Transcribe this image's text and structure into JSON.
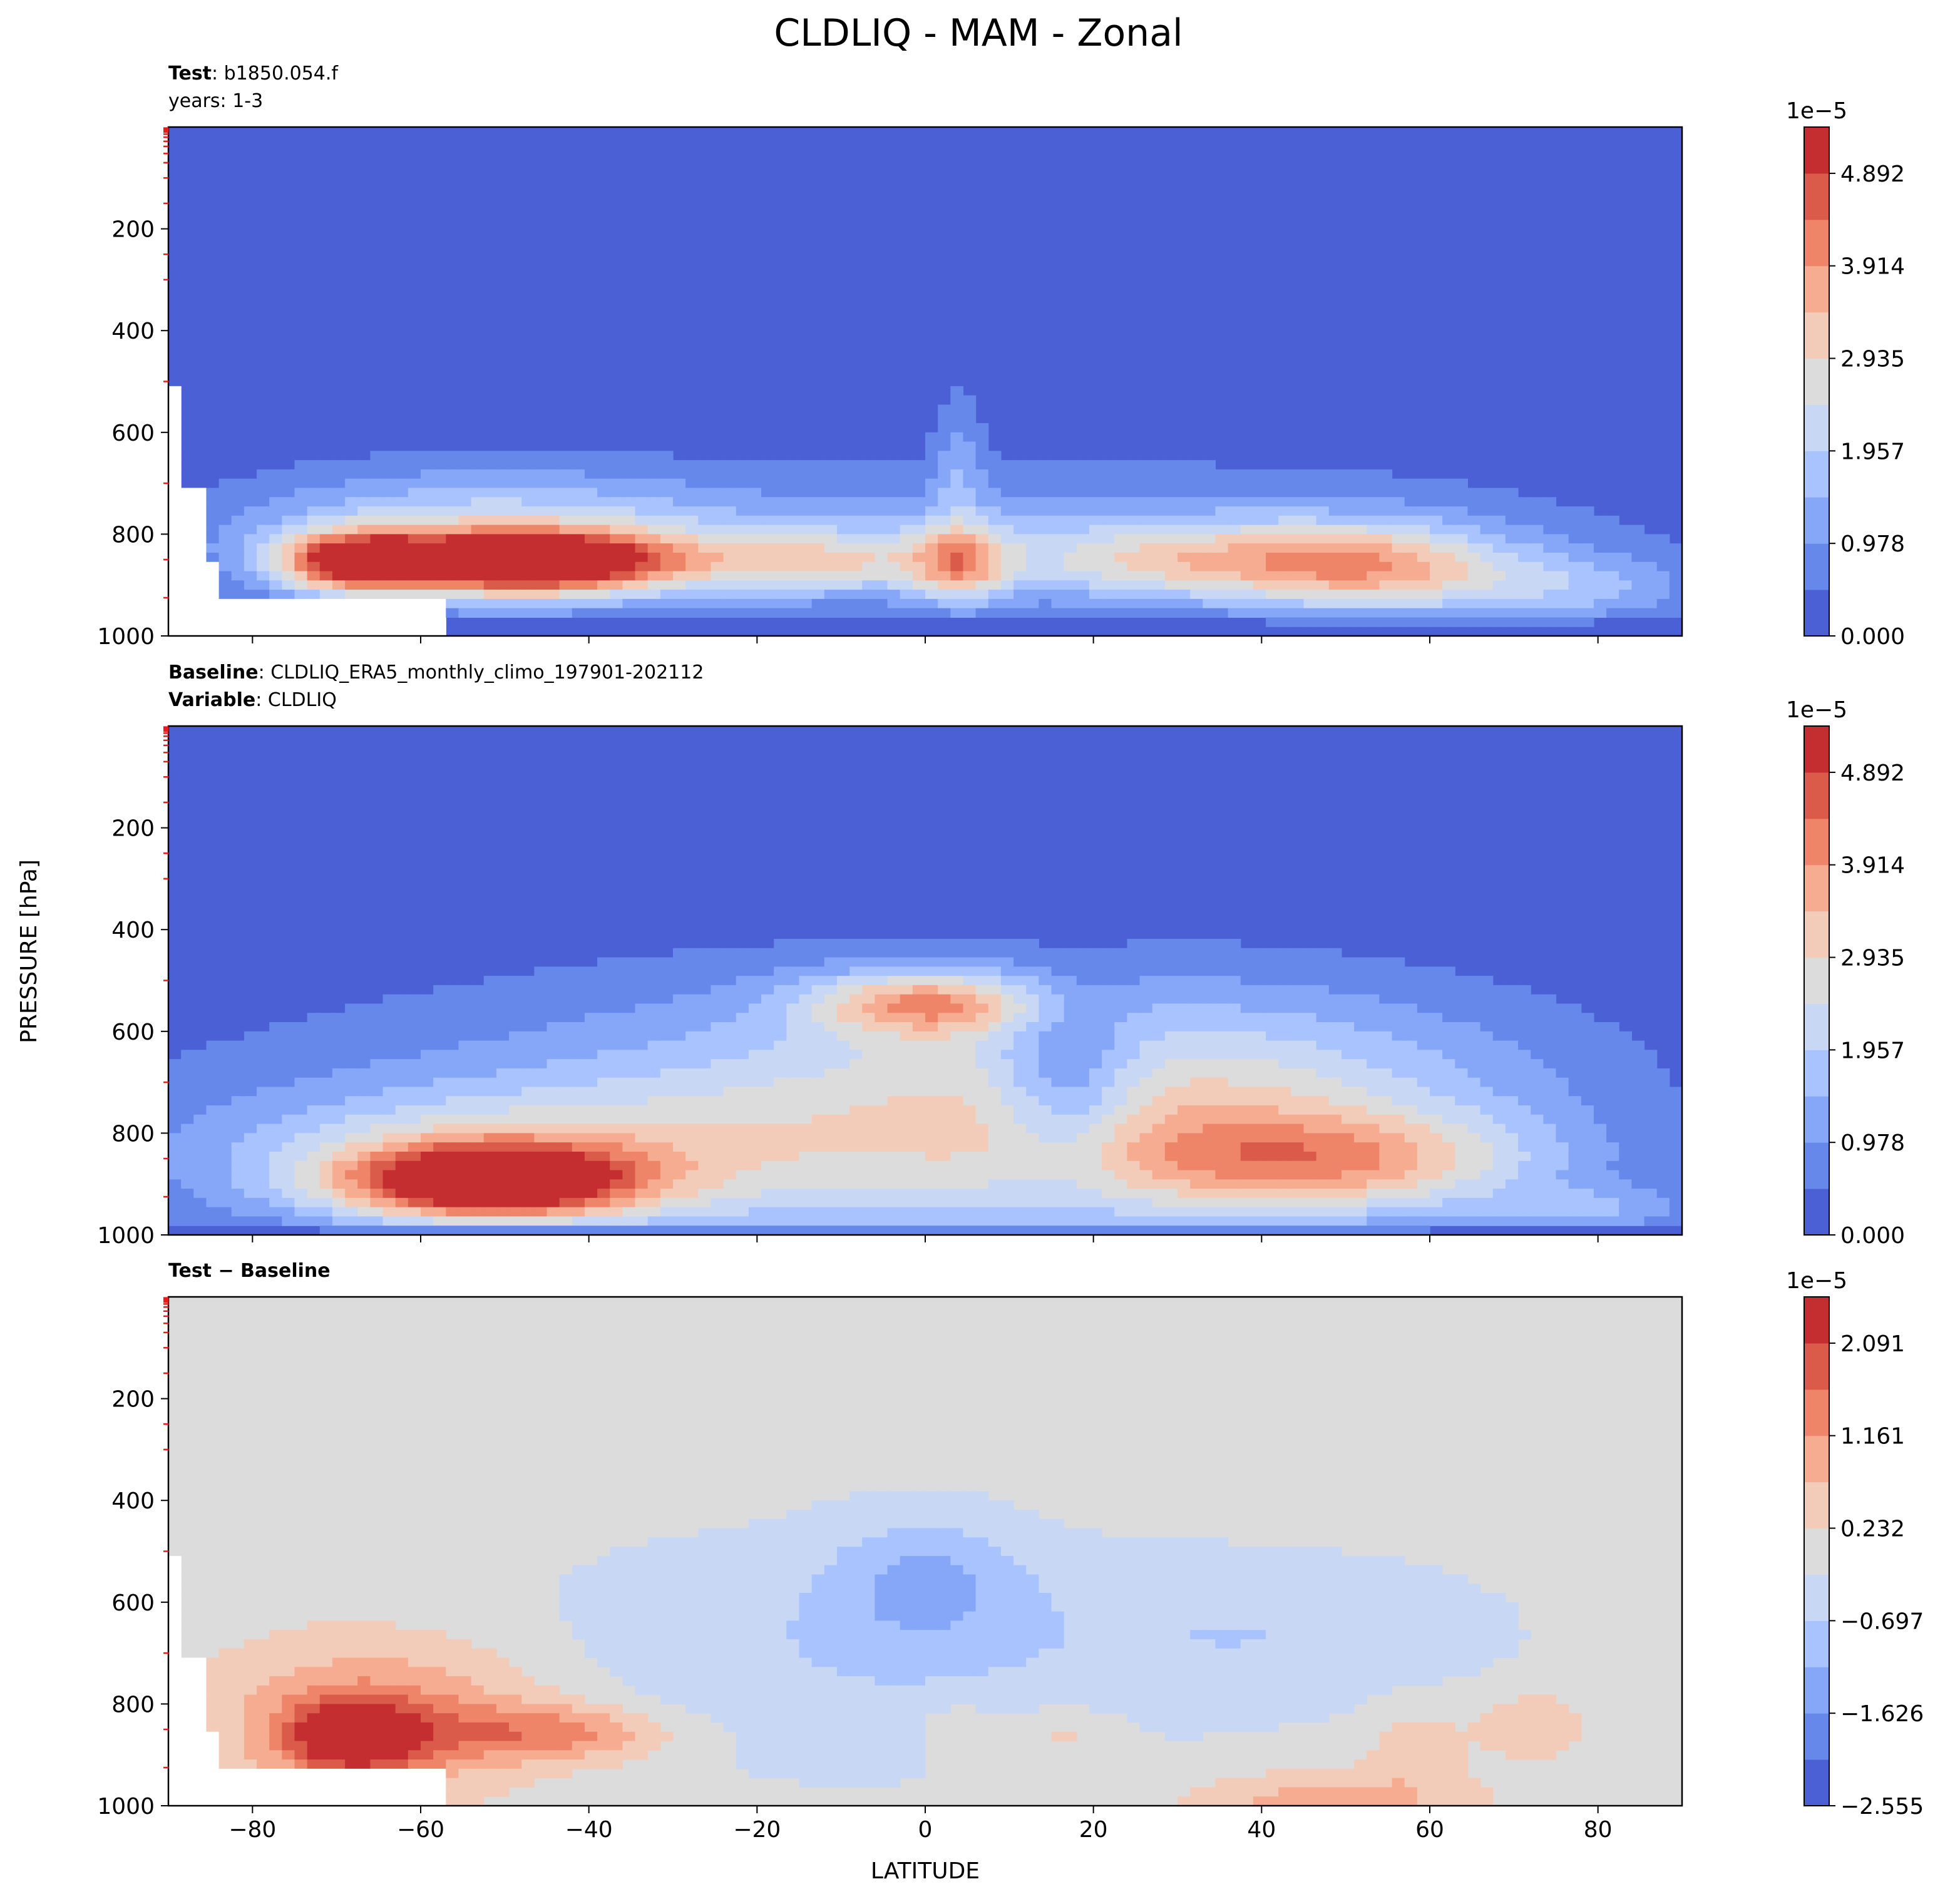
{
  "figure_title": "CLDLIQ - MAM - Zonal",
  "ylabel": "PRESSURE [hPa]",
  "xlabel": "LATITUDE",
  "xticks": [
    "−80",
    "−60",
    "−40",
    "−20",
    "0",
    "20",
    "40",
    "60",
    "80"
  ],
  "colors": {
    "sequential": [
      "#4a60d4",
      "#6688ea",
      "#86a7f8",
      "#a8c3fd",
      "#c8d8f4",
      "#dcdcdc",
      "#f2ccb8",
      "#f6ac90",
      "#ee8468",
      "#db5b4a",
      "#c52e30"
    ],
    "diverging": [
      "#4a60d4",
      "#6688ea",
      "#86a7f8",
      "#a8c3fd",
      "#c8d8f4",
      "#dcdcdc",
      "#f2ccb8",
      "#f6ac90",
      "#ee8468",
      "#db5b4a",
      "#c52e30"
    ],
    "background_diff": "#dcdcdc",
    "missing": "#ffffff",
    "minor_tick": "#e8191b"
  },
  "chart_data": [
    {
      "type": "heatmap",
      "panel": "test",
      "header": [
        {
          "bold": "Test",
          "text": ": b1850.054.f"
        },
        {
          "bold": "",
          "text": "years: 1-3"
        }
      ],
      "x": {
        "label": "LATITUDE",
        "lim": [
          -90,
          90
        ],
        "ticks": [
          -80,
          -60,
          -40,
          -20,
          0,
          20,
          40,
          60,
          80
        ]
      },
      "y": {
        "label": "PRESSURE [hPa]",
        "lim": [
          1000,
          0
        ],
        "ticks": [
          "200",
          "400",
          "600",
          "800",
          "1000"
        ]
      },
      "colorbar": {
        "offset": "1e−5",
        "ticklabels": [
          "4.892",
          "3.914",
          "2.935",
          "1.957",
          "0.978",
          "0.000"
        ],
        "levels": 11
      },
      "values_scale": "1e-5",
      "field_max": 5.4
    },
    {
      "type": "heatmap",
      "panel": "baseline",
      "header": [
        {
          "bold": "Baseline",
          "text": ": CLDLIQ_ERA5_monthly_climo_197901-202112"
        },
        {
          "bold": "Variable",
          "text": ": CLDLIQ"
        }
      ],
      "x": {
        "label": "LATITUDE",
        "lim": [
          -90,
          90
        ],
        "ticks": [
          -80,
          -60,
          -40,
          -20,
          0,
          20,
          40,
          60,
          80
        ]
      },
      "y": {
        "label": "PRESSURE [hPa]",
        "lim": [
          1000,
          0
        ],
        "ticks": [
          "200",
          "400",
          "600",
          "800",
          "1000"
        ]
      },
      "colorbar": {
        "offset": "1e−5",
        "ticklabels": [
          "4.892",
          "3.914",
          "2.935",
          "1.957",
          "0.978",
          "0.000"
        ],
        "levels": 11
      },
      "values_scale": "1e-5",
      "field_max": 4.6
    },
    {
      "type": "heatmap",
      "panel": "diff",
      "header": [
        {
          "bold": "Test − Baseline",
          "text": ""
        }
      ],
      "x": {
        "label": "LATITUDE",
        "lim": [
          -90,
          90
        ],
        "ticks": [
          -80,
          -60,
          -40,
          -20,
          0,
          20,
          40,
          60,
          80
        ]
      },
      "y": {
        "label": "PRESSURE [hPa]",
        "lim": [
          1000,
          0
        ],
        "ticks": [
          "200",
          "400",
          "600",
          "800",
          "1000"
        ]
      },
      "colorbar": {
        "offset": "1e−5",
        "ticklabels": [
          "2.091",
          "1.161",
          "0.232",
          "−0.697",
          "−1.626",
          "−2.555"
        ],
        "levels": 11
      },
      "values_scale": "1e-5",
      "field_range": [
        -1.5,
        2.3
      ]
    }
  ]
}
